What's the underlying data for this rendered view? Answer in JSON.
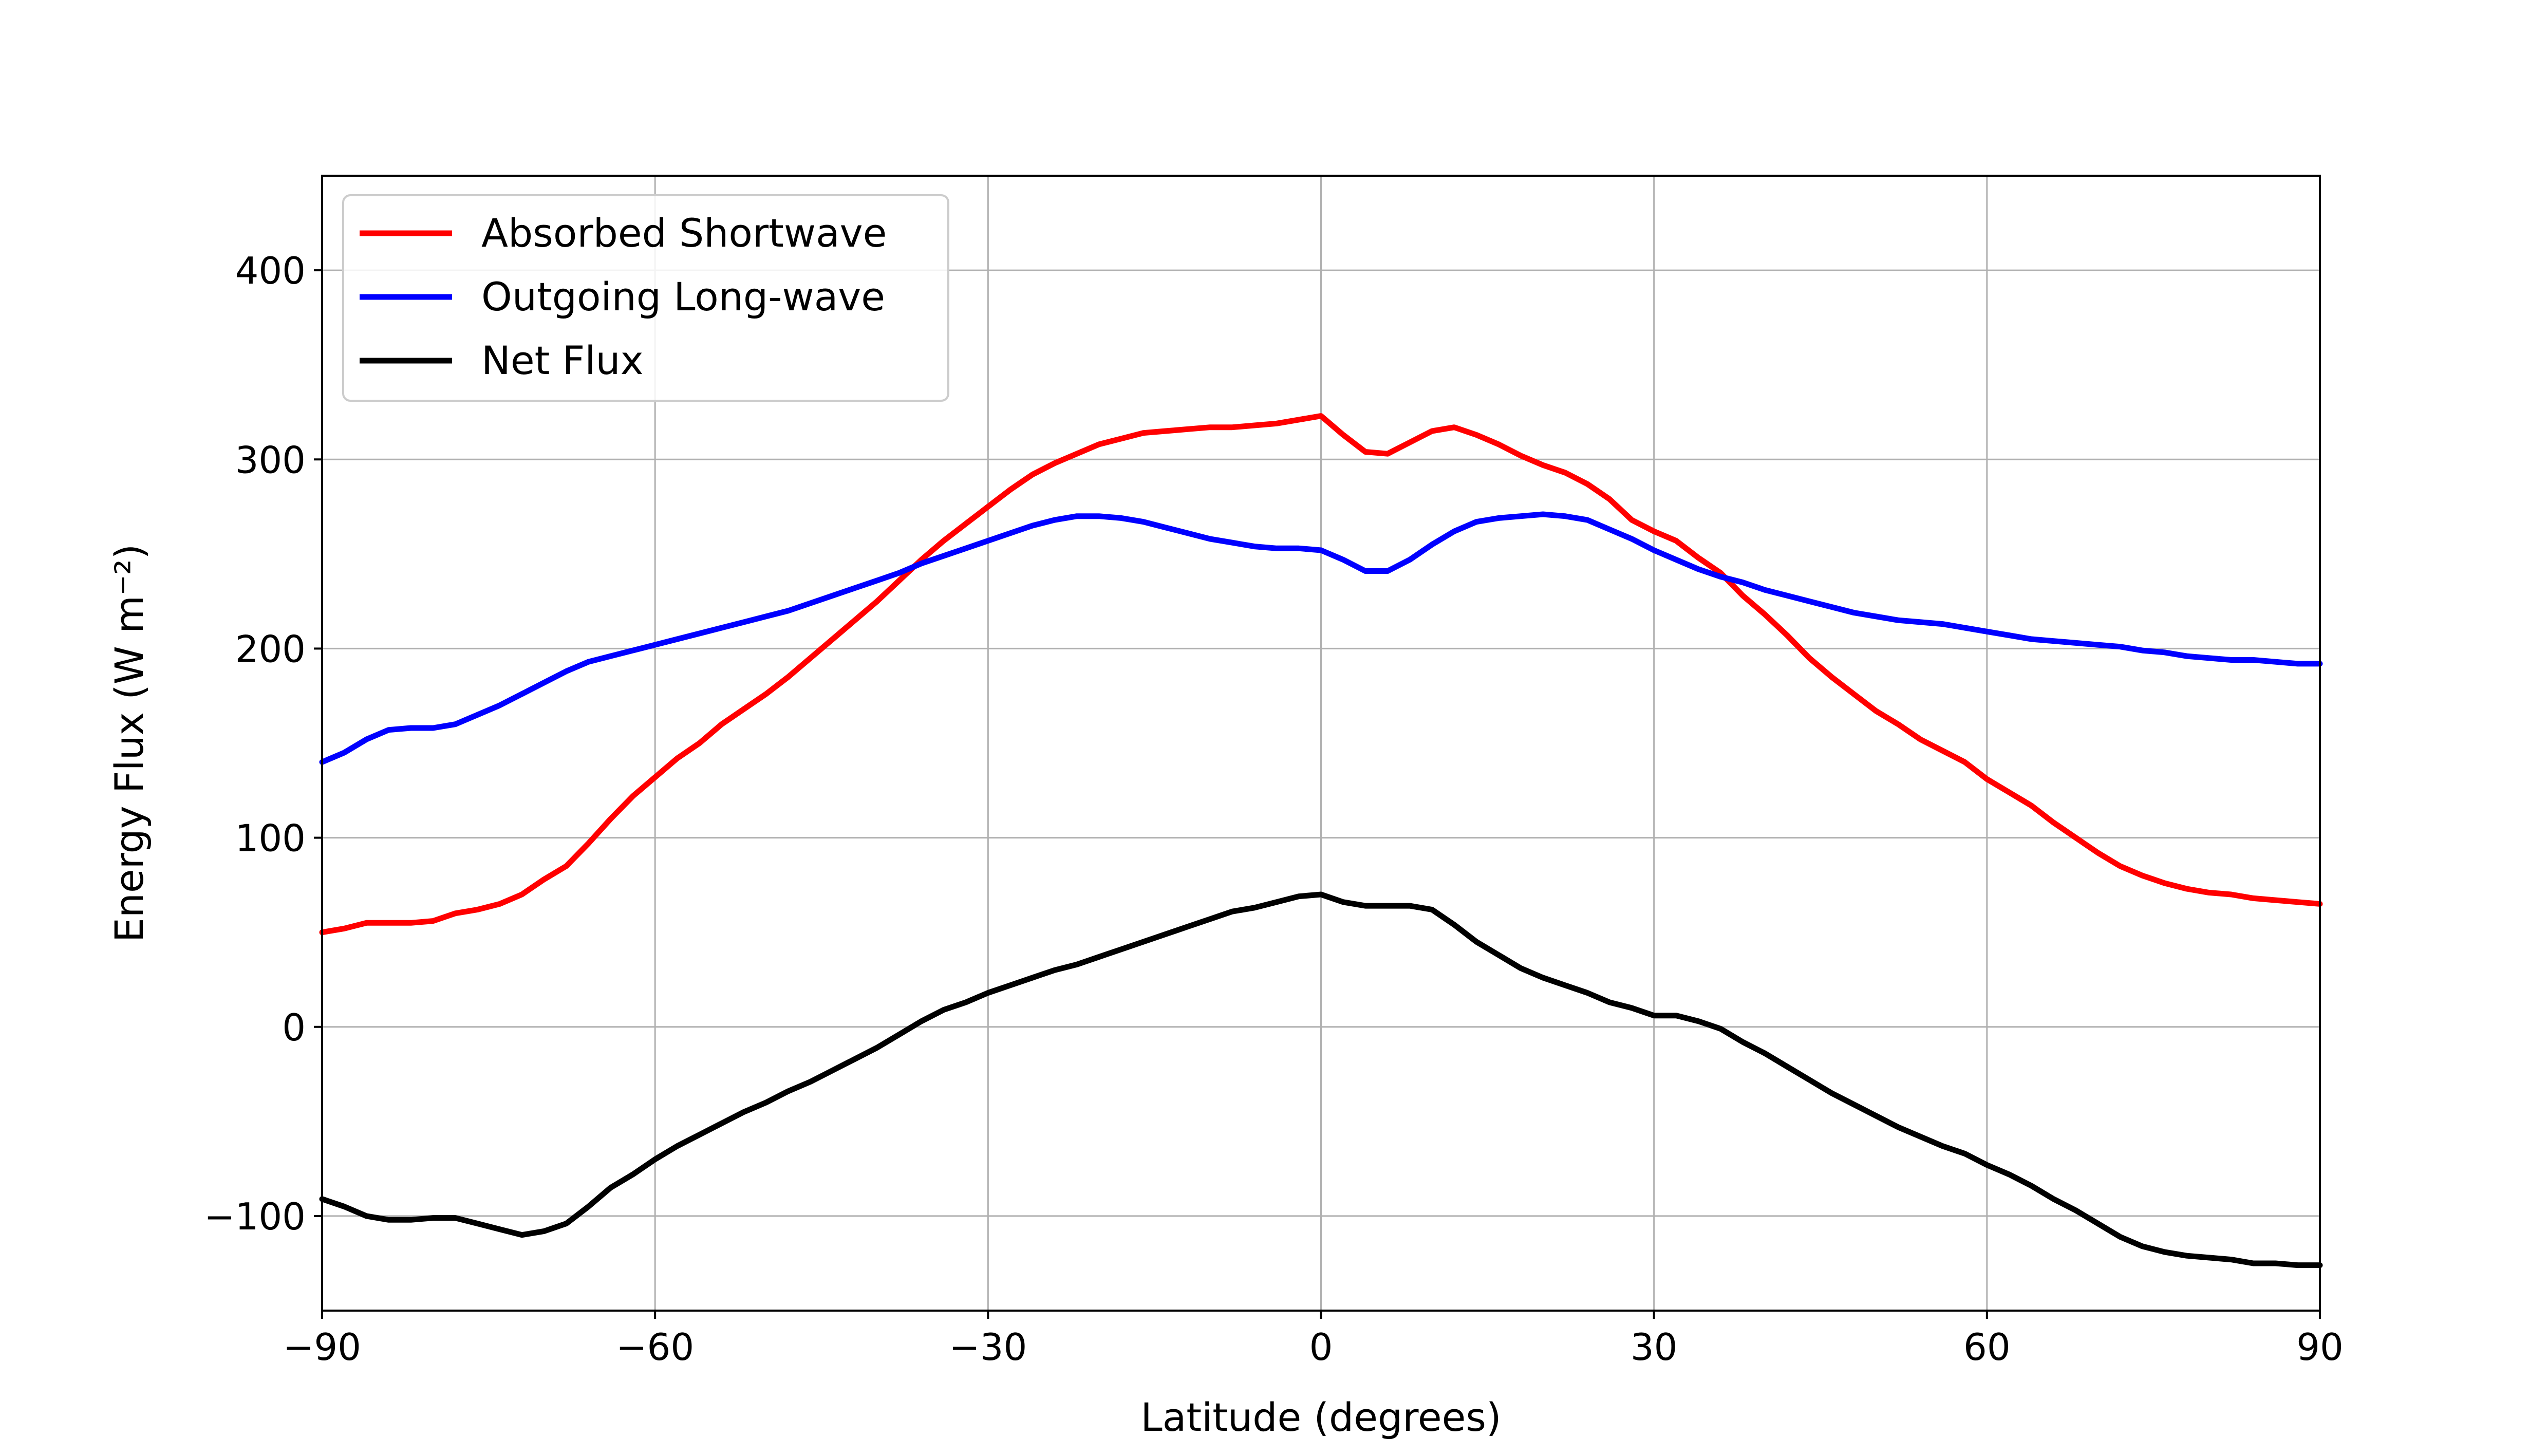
{
  "chart_data": {
    "type": "line",
    "title": "",
    "xlabel": "Latitude (degrees)",
    "ylabel": "Energy Flux (W m⁻²)",
    "xlim": [
      -90,
      90
    ],
    "ylim": [
      -150,
      450
    ],
    "xticks": [
      -90,
      -60,
      -30,
      0,
      30,
      60,
      90
    ],
    "xtick_labels": [
      "−90",
      "−60",
      "−30",
      "0",
      "30",
      "60",
      "90"
    ],
    "yticks": [
      -100,
      0,
      100,
      200,
      300,
      400
    ],
    "ytick_labels": [
      "−100",
      "0",
      "100",
      "200",
      "300",
      "400"
    ],
    "grid": true,
    "legend_position": "top-left",
    "series": [
      {
        "name": "Absorbed Shortwave",
        "color": "#ff0000",
        "x": [
          -90,
          -88,
          -86,
          -84,
          -82,
          -80,
          -78,
          -76,
          -74,
          -72,
          -70,
          -68,
          -66,
          -64,
          -62,
          -60,
          -58,
          -56,
          -54,
          -52,
          -50,
          -48,
          -46,
          -44,
          -42,
          -40,
          -38,
          -36,
          -34,
          -32,
          -30,
          -28,
          -26,
          -24,
          -22,
          -20,
          -18,
          -16,
          -14,
          -12,
          -10,
          -8,
          -6,
          -4,
          -2,
          0,
          2,
          4,
          6,
          8,
          10,
          12,
          14,
          16,
          18,
          20,
          22,
          24,
          26,
          28,
          30,
          32,
          34,
          36,
          38,
          40,
          42,
          44,
          46,
          48,
          50,
          52,
          54,
          56,
          58,
          60,
          62,
          64,
          66,
          68,
          70,
          72,
          74,
          76,
          78,
          80,
          82,
          84,
          86,
          88,
          90
        ],
        "y": [
          50,
          52,
          55,
          55,
          55,
          56,
          60,
          62,
          65,
          70,
          78,
          85,
          97,
          110,
          122,
          132,
          142,
          150,
          160,
          168,
          176,
          185,
          195,
          205,
          215,
          225,
          236,
          247,
          257,
          266,
          275,
          284,
          292,
          298,
          303,
          308,
          311,
          314,
          315,
          316,
          317,
          317,
          318,
          319,
          321,
          323,
          313,
          304,
          303,
          309,
          315,
          317,
          313,
          308,
          302,
          297,
          293,
          287,
          279,
          268,
          262,
          257,
          248,
          240,
          228,
          218,
          207,
          195,
          185,
          176,
          167,
          160,
          152,
          146,
          140,
          131,
          124,
          117,
          108,
          100,
          92,
          85,
          80,
          76,
          73,
          71,
          70,
          68,
          67,
          66,
          65
        ]
      },
      {
        "name": "Outgoing Long-wave",
        "color": "#0000ff",
        "x": [
          -90,
          -88,
          -86,
          -84,
          -82,
          -80,
          -78,
          -76,
          -74,
          -72,
          -70,
          -68,
          -66,
          -64,
          -62,
          -60,
          -58,
          -56,
          -54,
          -52,
          -50,
          -48,
          -46,
          -44,
          -42,
          -40,
          -38,
          -36,
          -34,
          -32,
          -30,
          -28,
          -26,
          -24,
          -22,
          -20,
          -18,
          -16,
          -14,
          -12,
          -10,
          -8,
          -6,
          -4,
          -2,
          0,
          2,
          4,
          6,
          8,
          10,
          12,
          14,
          16,
          18,
          20,
          22,
          24,
          26,
          28,
          30,
          32,
          34,
          36,
          38,
          40,
          42,
          44,
          46,
          48,
          50,
          52,
          54,
          56,
          58,
          60,
          62,
          64,
          66,
          68,
          70,
          72,
          74,
          76,
          78,
          80,
          82,
          84,
          86,
          88,
          90
        ],
        "y": [
          140,
          145,
          152,
          157,
          158,
          158,
          160,
          165,
          170,
          176,
          182,
          188,
          193,
          196,
          199,
          202,
          205,
          208,
          211,
          214,
          217,
          220,
          224,
          228,
          232,
          236,
          240,
          245,
          249,
          253,
          257,
          261,
          265,
          268,
          270,
          270,
          269,
          267,
          264,
          261,
          258,
          256,
          254,
          253,
          253,
          252,
          247,
          241,
          241,
          247,
          255,
          262,
          267,
          269,
          270,
          271,
          270,
          268,
          263,
          258,
          252,
          247,
          242,
          238,
          235,
          231,
          228,
          225,
          222,
          219,
          217,
          215,
          214,
          213,
          211,
          209,
          207,
          205,
          204,
          203,
          202,
          201,
          199,
          198,
          196,
          195,
          194,
          194,
          193,
          192,
          192
        ]
      },
      {
        "name": "Net Flux",
        "color": "#000000",
        "x": [
          -90,
          -88,
          -86,
          -84,
          -82,
          -80,
          -78,
          -76,
          -74,
          -72,
          -70,
          -68,
          -66,
          -64,
          -62,
          -60,
          -58,
          -56,
          -54,
          -52,
          -50,
          -48,
          -46,
          -44,
          -42,
          -40,
          -38,
          -36,
          -34,
          -32,
          -30,
          -28,
          -26,
          -24,
          -22,
          -20,
          -18,
          -16,
          -14,
          -12,
          -10,
          -8,
          -6,
          -4,
          -2,
          0,
          2,
          4,
          6,
          8,
          10,
          12,
          14,
          16,
          18,
          20,
          22,
          24,
          26,
          28,
          30,
          32,
          34,
          36,
          38,
          40,
          42,
          44,
          46,
          48,
          50,
          52,
          54,
          56,
          58,
          60,
          62,
          64,
          66,
          68,
          70,
          72,
          74,
          76,
          78,
          80,
          82,
          84,
          86,
          88,
          90
        ],
        "y": [
          -91,
          -95,
          -100,
          -102,
          -102,
          -101,
          -101,
          -104,
          -107,
          -110,
          -108,
          -104,
          -95,
          -85,
          -78,
          -70,
          -63,
          -57,
          -51,
          -45,
          -40,
          -34,
          -29,
          -23,
          -17,
          -11,
          -4,
          3,
          9,
          13,
          18,
          22,
          26,
          30,
          33,
          37,
          41,
          45,
          49,
          53,
          57,
          61,
          63,
          66,
          69,
          70,
          66,
          64,
          64,
          64,
          62,
          54,
          45,
          38,
          31,
          26,
          22,
          18,
          13,
          10,
          6,
          6,
          3,
          -1,
          -8,
          -14,
          -21,
          -28,
          -35,
          -41,
          -47,
          -53,
          -58,
          -63,
          -67,
          -73,
          -78,
          -84,
          -91,
          -97,
          -104,
          -111,
          -116,
          -119,
          -121,
          -122,
          -123,
          -125,
          -125,
          -126,
          -126
        ]
      }
    ]
  }
}
